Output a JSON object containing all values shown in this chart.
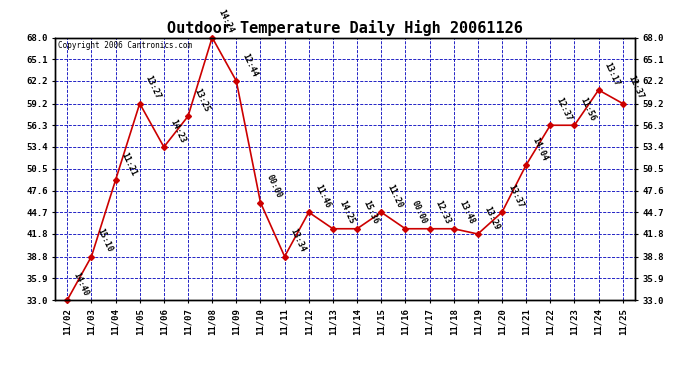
{
  "title": "Outdoor Temperature Daily High 20061126",
  "copyright": "Copyright 2006 Cantronics.com",
  "dates": [
    "11/02",
    "11/03",
    "11/04",
    "11/05",
    "11/06",
    "11/07",
    "11/08",
    "11/09",
    "11/10",
    "11/11",
    "11/12",
    "11/13",
    "11/14",
    "11/15",
    "11/16",
    "11/17",
    "11/18",
    "11/19",
    "11/20",
    "11/21",
    "11/22",
    "11/23",
    "11/24",
    "11/25"
  ],
  "temps": [
    33.0,
    38.8,
    49.0,
    59.2,
    53.4,
    57.5,
    68.0,
    62.2,
    46.0,
    38.8,
    44.7,
    42.5,
    42.5,
    44.7,
    42.5,
    42.5,
    42.5,
    41.8,
    44.7,
    51.0,
    56.3,
    56.3,
    61.0,
    59.2
  ],
  "time_labels": [
    "14:40",
    "15:10",
    "11:21",
    "13:27",
    "14:23",
    "13:25",
    "14:24",
    "12:44",
    "00:00",
    "13:34",
    "11:46",
    "14:25",
    "15:36",
    "11:20",
    "00:00",
    "12:33",
    "13:48",
    "13:29",
    "13:37",
    "14:04",
    "12:37",
    "11:56",
    "13:17",
    "12:37"
  ],
  "ylim": [
    33.0,
    68.0
  ],
  "yticks": [
    33.0,
    35.9,
    38.8,
    41.8,
    44.7,
    47.6,
    50.5,
    53.4,
    56.3,
    59.2,
    62.2,
    65.1,
    68.0
  ],
  "line_color": "#cc0000",
  "marker_color": "#cc0000",
  "grid_color": "#0000bb",
  "bg_color": "#ffffff",
  "plot_bg_color": "#ffffff",
  "title_fontsize": 11,
  "label_fontsize": 6,
  "tick_fontsize": 6.5,
  "copyright_fontsize": 5.5
}
